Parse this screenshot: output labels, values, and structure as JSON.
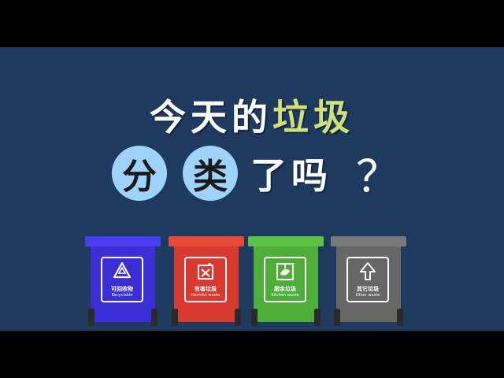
{
  "title": {
    "line1": [
      {
        "text": "今",
        "accent": false
      },
      {
        "text": "天",
        "accent": false
      },
      {
        "text": "的",
        "accent": false
      },
      {
        "text": "垃",
        "accent": true
      },
      {
        "text": "圾",
        "accent": true
      }
    ],
    "line2_circles": [
      "分",
      "类"
    ],
    "line2_rest": "了吗",
    "question_mark": "？"
  },
  "colors": {
    "background": "#1f3a5f",
    "accent": "#cfe07a",
    "circle": "#9fd3ff"
  },
  "bins": [
    {
      "cn": "可回收物",
      "en": "Recyclable",
      "icon": "recycle-icon",
      "color": "#3a2fd6",
      "lid": "#4a3ff0"
    },
    {
      "cn": "有害垃圾",
      "en": "Harmful waste",
      "icon": "harmful-icon",
      "color": "#d93a2f",
      "lid": "#e84a3a"
    },
    {
      "cn": "厨余垃圾",
      "en": "Kitchen waste",
      "icon": "kitchen-icon",
      "color": "#4fae3a",
      "lid": "#5dc244"
    },
    {
      "cn": "其它垃圾",
      "en": "Other waste",
      "icon": "other-icon",
      "color": "#666666",
      "lid": "#7a7a7a"
    }
  ]
}
